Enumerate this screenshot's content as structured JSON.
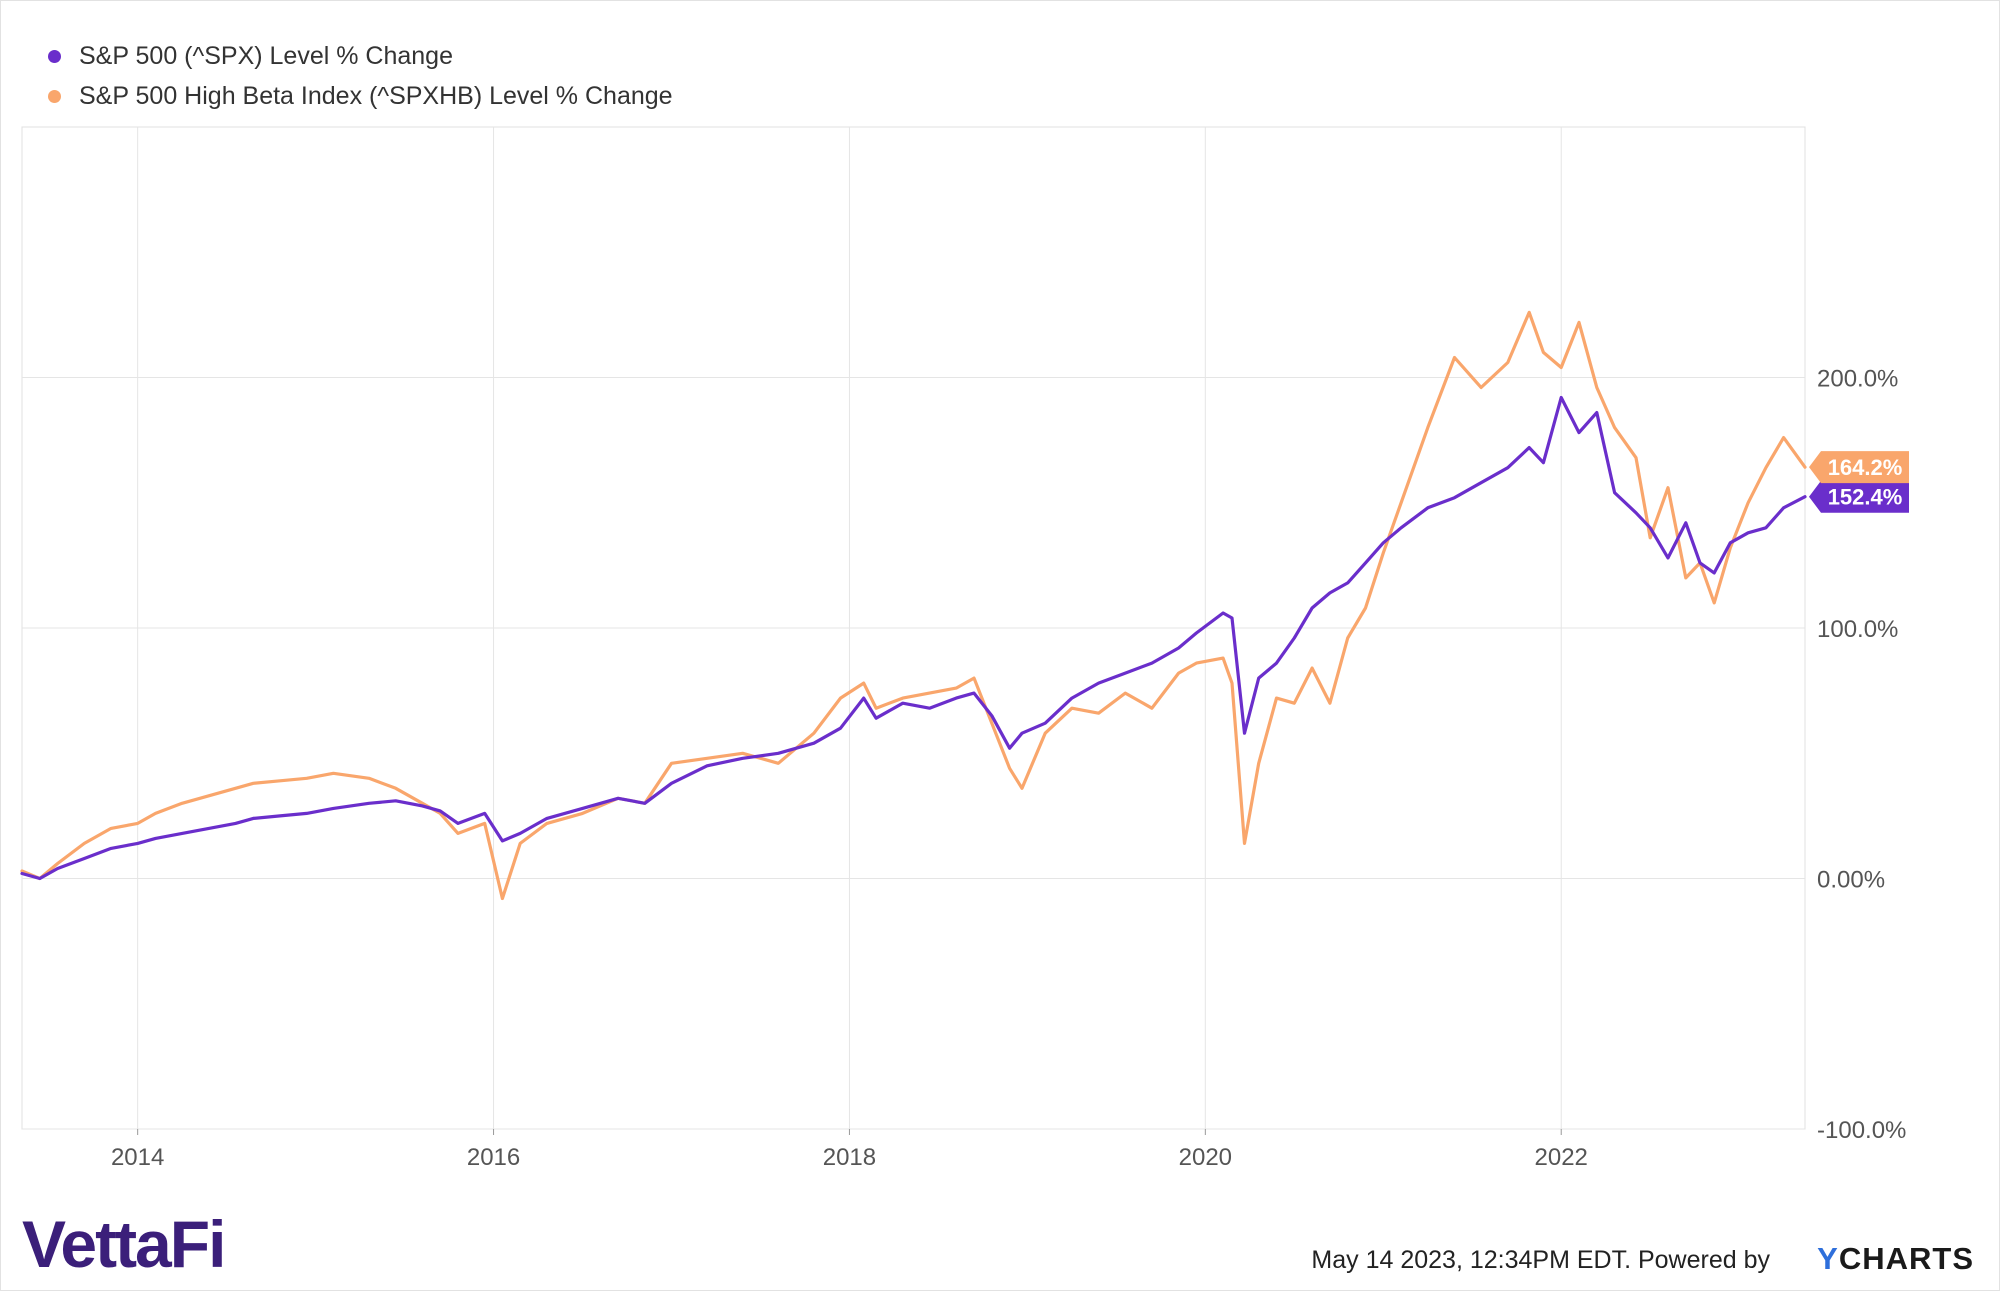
{
  "legend": {
    "spx_label": "S&P 500 (^SPX) Level % Change",
    "spxhb_label": "S&P 500 High Beta Index (^SPXHB) Level % Change"
  },
  "colors": {
    "spx": "#6a2ecb",
    "spxhb": "#f9a66c",
    "grid": "#e5e5e5"
  },
  "footer": {
    "timestamp": "May 14 2023, 12:34PM EDT. Powered by",
    "brand_y": "Y",
    "brand_rest": "CHARTS"
  },
  "logo": {
    "text": "VettaFi"
  },
  "chart_data": {
    "type": "line",
    "title": "",
    "xlabel": "",
    "ylabel": "",
    "xlim": [
      2013.35,
      2023.37
    ],
    "ylim": [
      -100,
      300
    ],
    "y_ticks": [
      {
        "value": -100,
        "label": "-100.0%"
      },
      {
        "value": 0,
        "label": "0.00%"
      },
      {
        "value": 100,
        "label": "100.0%"
      },
      {
        "value": 200,
        "label": "200.0%"
      }
    ],
    "x_ticks": [
      {
        "value": 2014,
        "label": "2014"
      },
      {
        "value": 2016,
        "label": "2016"
      },
      {
        "value": 2018,
        "label": "2018"
      },
      {
        "value": 2020,
        "label": "2020"
      },
      {
        "value": 2022,
        "label": "2022"
      }
    ],
    "grid": true,
    "legend_position": "top-left",
    "series": [
      {
        "name": "S&P 500 (^SPX) Level % Change",
        "color": "#6a2ecb",
        "end_label": "152.4%",
        "x": [
          2013.35,
          2013.45,
          2013.55,
          2013.7,
          2013.85,
          2014.0,
          2014.1,
          2014.25,
          2014.4,
          2014.55,
          2014.65,
          2014.8,
          2014.95,
          2015.1,
          2015.3,
          2015.45,
          2015.6,
          2015.7,
          2015.8,
          2015.95,
          2016.05,
          2016.15,
          2016.3,
          2016.5,
          2016.7,
          2016.85,
          2017.0,
          2017.2,
          2017.4,
          2017.6,
          2017.8,
          2017.95,
          2018.08,
          2018.15,
          2018.3,
          2018.45,
          2018.6,
          2018.7,
          2018.8,
          2018.9,
          2018.97,
          2019.1,
          2019.25,
          2019.4,
          2019.55,
          2019.7,
          2019.85,
          2019.95,
          2020.1,
          2020.15,
          2020.22,
          2020.3,
          2020.4,
          2020.5,
          2020.6,
          2020.7,
          2020.8,
          2020.9,
          2021.0,
          2021.1,
          2021.25,
          2021.4,
          2021.55,
          2021.7,
          2021.82,
          2021.9,
          2022.0,
          2022.1,
          2022.2,
          2022.3,
          2022.42,
          2022.5,
          2022.6,
          2022.7,
          2022.78,
          2022.86,
          2022.95,
          2023.05,
          2023.15,
          2023.25,
          2023.37
        ],
        "values": [
          2,
          0,
          4,
          8,
          12,
          14,
          16,
          18,
          20,
          22,
          24,
          25,
          26,
          28,
          30,
          31,
          29,
          27,
          22,
          26,
          15,
          18,
          24,
          28,
          32,
          30,
          38,
          45,
          48,
          50,
          54,
          60,
          72,
          64,
          70,
          68,
          72,
          74,
          65,
          52,
          58,
          62,
          72,
          78,
          82,
          86,
          92,
          98,
          106,
          104,
          58,
          80,
          86,
          96,
          108,
          114,
          118,
          126,
          134,
          140,
          148,
          152,
          158,
          164,
          172,
          166,
          192,
          178,
          186,
          154,
          146,
          140,
          128,
          142,
          126,
          122,
          134,
          138,
          140,
          148,
          152.4
        ]
      },
      {
        "name": "S&P 500 High Beta Index (^SPXHB) Level % Change",
        "color": "#f9a66c",
        "end_label": "164.2%",
        "x": [
          2013.35,
          2013.45,
          2013.55,
          2013.7,
          2013.85,
          2014.0,
          2014.1,
          2014.25,
          2014.4,
          2014.55,
          2014.65,
          2014.8,
          2014.95,
          2015.1,
          2015.3,
          2015.45,
          2015.6,
          2015.7,
          2015.8,
          2015.95,
          2016.05,
          2016.15,
          2016.3,
          2016.5,
          2016.7,
          2016.85,
          2017.0,
          2017.2,
          2017.4,
          2017.6,
          2017.8,
          2017.95,
          2018.08,
          2018.15,
          2018.3,
          2018.45,
          2018.6,
          2018.7,
          2018.8,
          2018.9,
          2018.97,
          2019.1,
          2019.25,
          2019.4,
          2019.55,
          2019.7,
          2019.85,
          2019.95,
          2020.1,
          2020.15,
          2020.22,
          2020.3,
          2020.4,
          2020.5,
          2020.6,
          2020.7,
          2020.8,
          2020.9,
          2021.0,
          2021.1,
          2021.25,
          2021.4,
          2021.55,
          2021.7,
          2021.82,
          2021.9,
          2022.0,
          2022.1,
          2022.2,
          2022.3,
          2022.42,
          2022.5,
          2022.6,
          2022.7,
          2022.78,
          2022.86,
          2022.95,
          2023.05,
          2023.15,
          2023.25,
          2023.37
        ],
        "values": [
          3,
          0,
          6,
          14,
          20,
          22,
          26,
          30,
          33,
          36,
          38,
          39,
          40,
          42,
          40,
          36,
          30,
          26,
          18,
          22,
          -8,
          14,
          22,
          26,
          32,
          30,
          46,
          48,
          50,
          46,
          58,
          72,
          78,
          68,
          72,
          74,
          76,
          80,
          62,
          44,
          36,
          58,
          68,
          66,
          74,
          68,
          82,
          86,
          88,
          78,
          14,
          46,
          72,
          70,
          84,
          70,
          96,
          108,
          130,
          150,
          180,
          208,
          196,
          206,
          226,
          210,
          204,
          222,
          196,
          180,
          168,
          136,
          156,
          120,
          126,
          110,
          132,
          150,
          164,
          176,
          164.2
        ]
      }
    ]
  }
}
